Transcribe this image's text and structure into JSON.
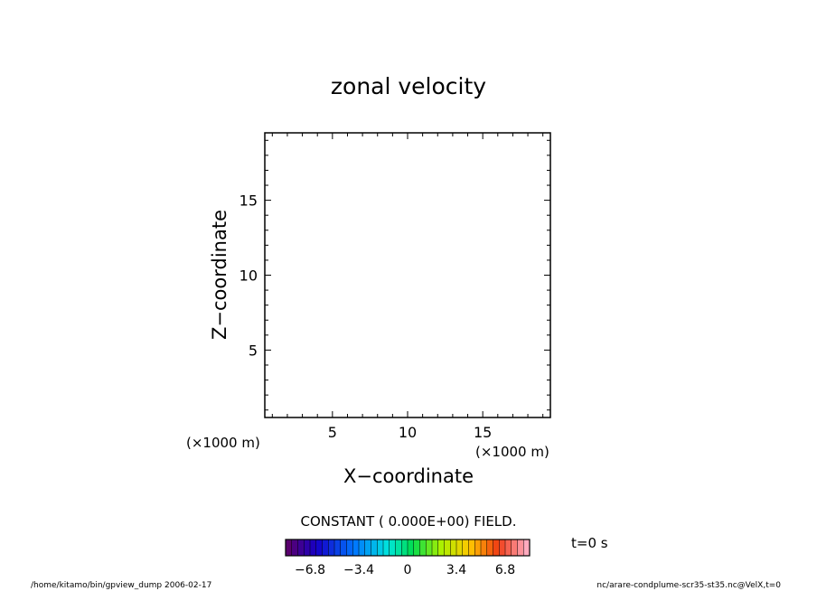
{
  "chart_data": {
    "type": "heatmap",
    "title": "zonal velocity",
    "xlabel": "X−coordinate",
    "ylabel": "Z−coordinate",
    "x_unit": "(×1000 m)",
    "y_unit": "(×1000 m)",
    "xlim": [
      0.5,
      19.5
    ],
    "ylim": [
      0.5,
      19.5
    ],
    "x_ticks": [
      5,
      10,
      15
    ],
    "y_ticks": [
      5,
      10,
      15
    ],
    "x_ticks_labels": [
      "5",
      "10",
      "15"
    ],
    "y_ticks_labels": [
      "5",
      "10",
      "15"
    ],
    "field_message": "CONSTANT ( 0.000E+00) FIELD.",
    "colorbar": {
      "range": [
        -8.5,
        8.5
      ],
      "ticks": [
        -6.8,
        -3.4,
        0,
        3.4,
        6.8
      ],
      "tick_labels": [
        "−6.8",
        "−3.4",
        "0",
        "3.4",
        "6.8"
      ],
      "colormap": "rainbow"
    },
    "time_label": "t=0 s",
    "footer_left": "/home/kitamo/bin/gpview_dump  2006-02-17",
    "footer_right": "nc/arare-condplume-scr35-st35.nc@VelX,t=0"
  }
}
